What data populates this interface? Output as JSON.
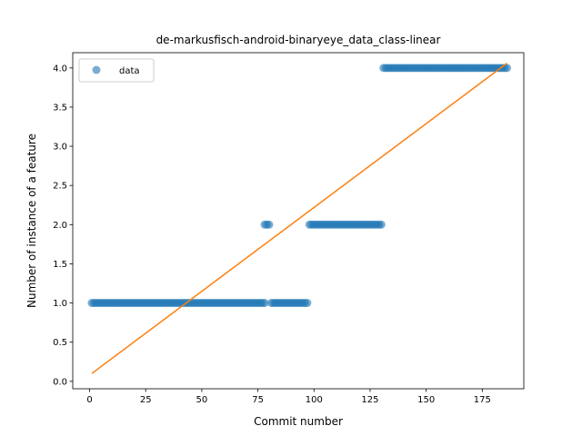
{
  "chart_data": {
    "type": "scatter",
    "title": "de-markusfisch-android-binaryeye_data_class-linear",
    "xlabel": "Commit number",
    "ylabel": "Number of instance of a feature",
    "xlim": [
      -7.5,
      193.5
    ],
    "ylim": [
      -0.095,
      4.195
    ],
    "xticks": [
      0,
      25,
      50,
      75,
      100,
      125,
      150,
      175
    ],
    "xtick_labels": [
      "0",
      "25",
      "50",
      "75",
      "100",
      "125",
      "150",
      "175"
    ],
    "yticks": [
      0.0,
      0.5,
      1.0,
      1.5,
      2.0,
      2.5,
      3.0,
      3.5,
      4.0
    ],
    "ytick_labels": [
      "0.0",
      "0.5",
      "1.0",
      "1.5",
      "2.0",
      "2.5",
      "3.0",
      "3.5",
      "4.0"
    ],
    "legend": {
      "position": "upper-left",
      "entries": [
        "data"
      ]
    },
    "grid": false,
    "series": [
      {
        "name": "data",
        "kind": "scatter",
        "color": "#1f77b4",
        "segments": [
          {
            "x_start": 1,
            "x_end": 78,
            "y": 1.0
          },
          {
            "x_start": 78,
            "x_end": 80,
            "y": 2.0
          },
          {
            "x_start": 81,
            "x_end": 97,
            "y": 1.0
          },
          {
            "x_start": 98,
            "x_end": 130,
            "y": 2.0
          },
          {
            "x_start": 131,
            "x_end": 186,
            "y": 4.0
          }
        ]
      },
      {
        "name": "",
        "kind": "line",
        "color": "#ff7f0e",
        "x": [
          1,
          186
        ],
        "y": [
          0.1,
          4.06
        ]
      }
    ]
  }
}
